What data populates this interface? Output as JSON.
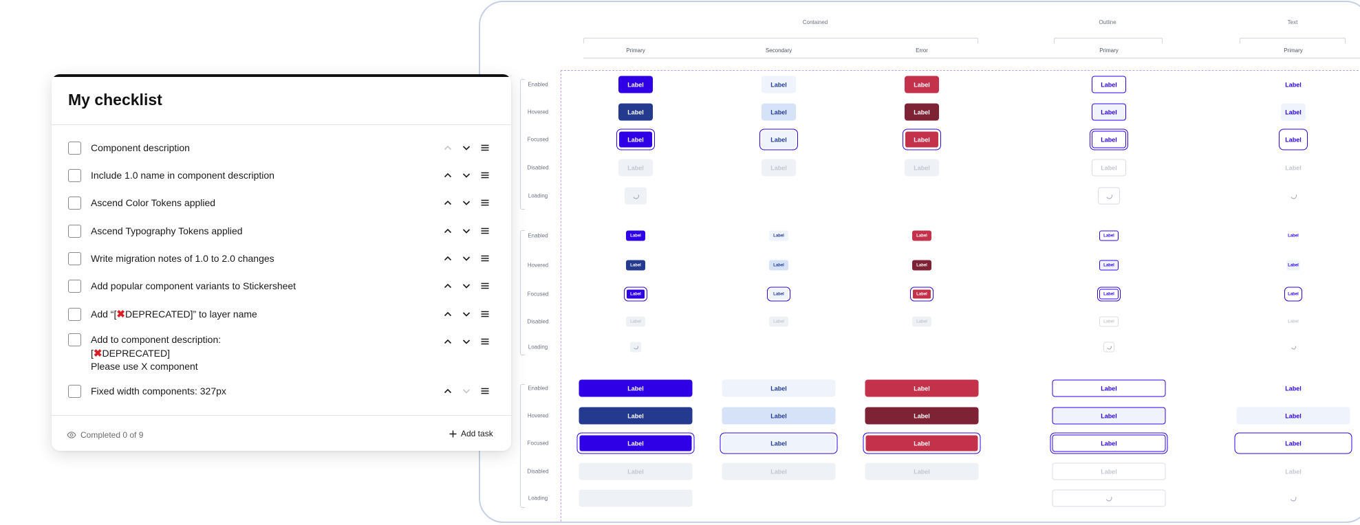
{
  "checklist": {
    "title": "My checklist",
    "items": [
      {
        "label": "Component description",
        "checked": false,
        "up_enabled": false,
        "down_enabled": true
      },
      {
        "label": "Include 1.0 name in component description",
        "checked": false,
        "up_enabled": true,
        "down_enabled": true
      },
      {
        "label": "Ascend Color Tokens applied",
        "checked": false,
        "up_enabled": true,
        "down_enabled": true
      },
      {
        "label": "Ascend Typography Tokens applied",
        "checked": false,
        "up_enabled": true,
        "down_enabled": true
      },
      {
        "label": "Write migration notes of 1.0 to 2.0 changes",
        "checked": false,
        "up_enabled": true,
        "down_enabled": true
      },
      {
        "label": "Add popular component variants to Stickersheet",
        "checked": false,
        "up_enabled": true,
        "down_enabled": true
      },
      {
        "label_prefix": "Add  “[",
        "label_mid": "DEPRECATED]” to layer name",
        "icon": "red-x-icon",
        "checked": false,
        "up_enabled": true,
        "down_enabled": true
      },
      {
        "label_line1": "Add to component description:",
        "label_line2_prefix": "[",
        "label_line2_rest": "DEPRECATED]",
        "label_line3": "Please use X component",
        "icon": "red-x-icon",
        "checked": false,
        "up_enabled": true,
        "down_enabled": true
      },
      {
        "label": "Fixed width components: 327px",
        "checked": false,
        "up_enabled": true,
        "down_enabled": false
      }
    ],
    "footer": {
      "completed": "Completed 0 of 9",
      "add_task": "Add task",
      "eye_icon": "eye-icon",
      "plus_icon": "plus-icon"
    }
  },
  "sticker_sheet": {
    "groups": {
      "contained": "Contained",
      "outline": "Outline",
      "text": "Text"
    },
    "columns": [
      "Primary",
      "Secondary",
      "Error",
      "Primary",
      "Primary"
    ],
    "states": [
      "Enabled",
      "Hovered",
      "Focused",
      "Disabled",
      "Loading"
    ],
    "button_label": "Label",
    "colors": {
      "primary": "#2f00e6",
      "primary_hover": "#243a8e",
      "secondary": "#eef3fc",
      "secondary_hover": "#d6e2f8",
      "error": "#c4314b",
      "error_hover": "#7e2235",
      "disabled": "#eef1f6",
      "focus_guide": "#c79bf0"
    }
  }
}
